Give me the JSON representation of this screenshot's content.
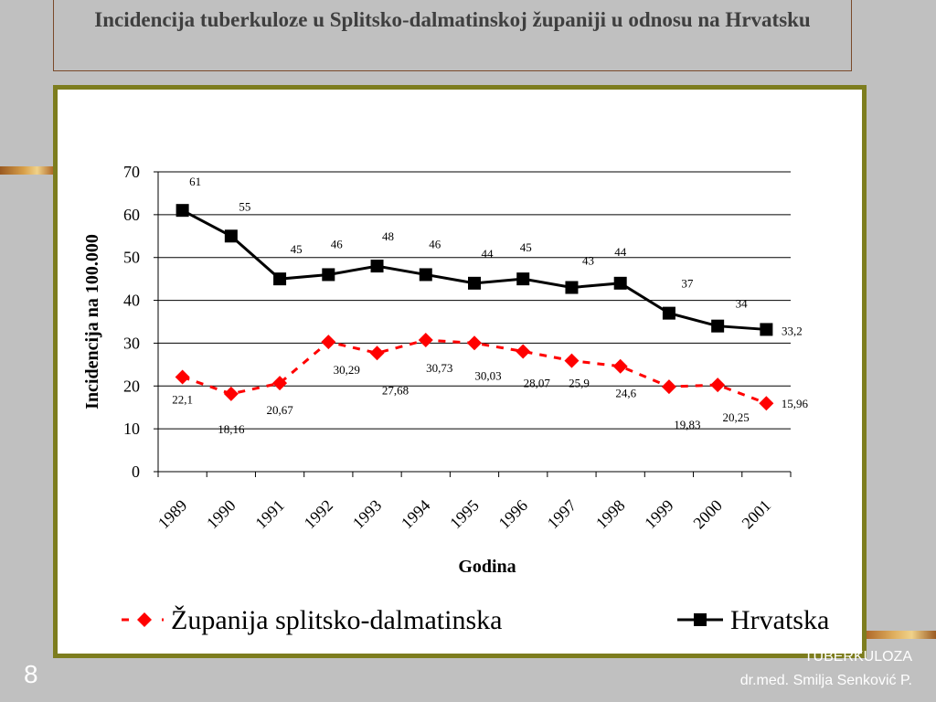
{
  "slide": {
    "title": "Incidencija tuberkuloze u Splitsko-dalmatinskoj županiji u odnosu na Hrvatsku",
    "number": "8",
    "footer_topic": "TUBERKULOZA",
    "footer_author": "dr.med. Smilja Senković P."
  },
  "chart_data": {
    "type": "line",
    "title": "",
    "xlabel": "Godina",
    "ylabel": "Incidencija na 100.000",
    "ylim": [
      0,
      70
    ],
    "yticks": [
      "0",
      "10",
      "20",
      "30",
      "40",
      "50",
      "60",
      "70"
    ],
    "grid": true,
    "legend_position": "bottom",
    "categories": [
      "1989",
      "1990",
      "1991",
      "1992",
      "1993",
      "1994",
      "1995",
      "1996",
      "1997",
      "1998",
      "1999",
      "2000",
      "2001"
    ],
    "series": [
      {
        "name": "Županija splitsko-dalmatinska",
        "color": "#ff0000",
        "marker": "diamond",
        "line_style": "dashed",
        "values": [
          22.1,
          18.16,
          20.67,
          30.29,
          27.68,
          30.73,
          30.03,
          28.07,
          25.9,
          24.6,
          19.83,
          20.25,
          15.96
        ],
        "labels": [
          "22,1",
          "18,16",
          "20,67",
          "30,29",
          "27,68",
          "30,73",
          "30,03",
          "28,07",
          "25,9",
          "24,6",
          "19,83",
          "20,25",
          "15,96"
        ]
      },
      {
        "name": "Hrvatska",
        "color": "#000000",
        "marker": "square",
        "line_style": "solid",
        "values": [
          61,
          55,
          45,
          46,
          48,
          46,
          44,
          45,
          43,
          44,
          37,
          34,
          33.2
        ],
        "labels": [
          "61",
          "55",
          "45",
          "46",
          "48",
          "46",
          "44",
          "45",
          "43",
          "44",
          "37",
          "34",
          "33,2"
        ]
      }
    ]
  }
}
